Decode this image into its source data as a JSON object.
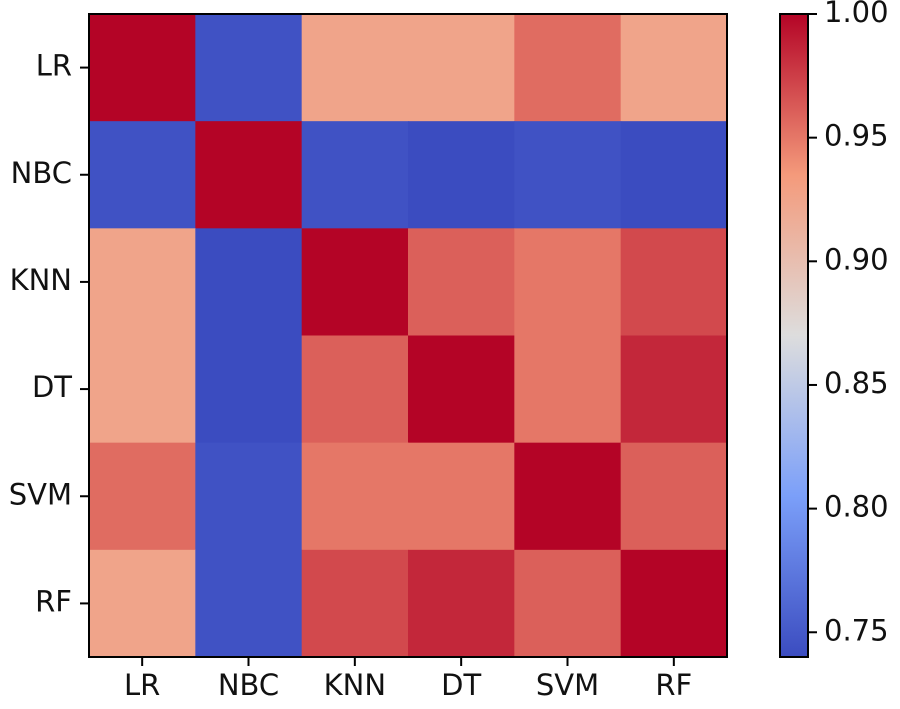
{
  "chart_data": {
    "type": "heatmap",
    "title": "",
    "xlabel": "",
    "ylabel": "",
    "row_labels": [
      "LR",
      "NBC",
      "KNN",
      "DT",
      "SVM",
      "RF"
    ],
    "col_labels": [
      "LR",
      "NBC",
      "KNN",
      "DT",
      "SVM",
      "RF"
    ],
    "values": [
      [
        1.0,
        0.745,
        0.925,
        0.925,
        0.955,
        0.925
      ],
      [
        0.745,
        1.0,
        0.745,
        0.74,
        0.745,
        0.74
      ],
      [
        0.925,
        0.74,
        1.0,
        0.96,
        0.95,
        0.97
      ],
      [
        0.925,
        0.74,
        0.96,
        1.0,
        0.95,
        0.985
      ],
      [
        0.955,
        0.745,
        0.95,
        0.95,
        1.0,
        0.96
      ],
      [
        0.925,
        0.745,
        0.97,
        0.985,
        0.96,
        1.0
      ]
    ],
    "colorbar": {
      "range": [
        0.74,
        1.0
      ],
      "ticks": [
        "1.00",
        "0.95",
        "0.90",
        "0.85",
        "0.80",
        "0.75"
      ],
      "colormap": "coolwarm"
    }
  }
}
